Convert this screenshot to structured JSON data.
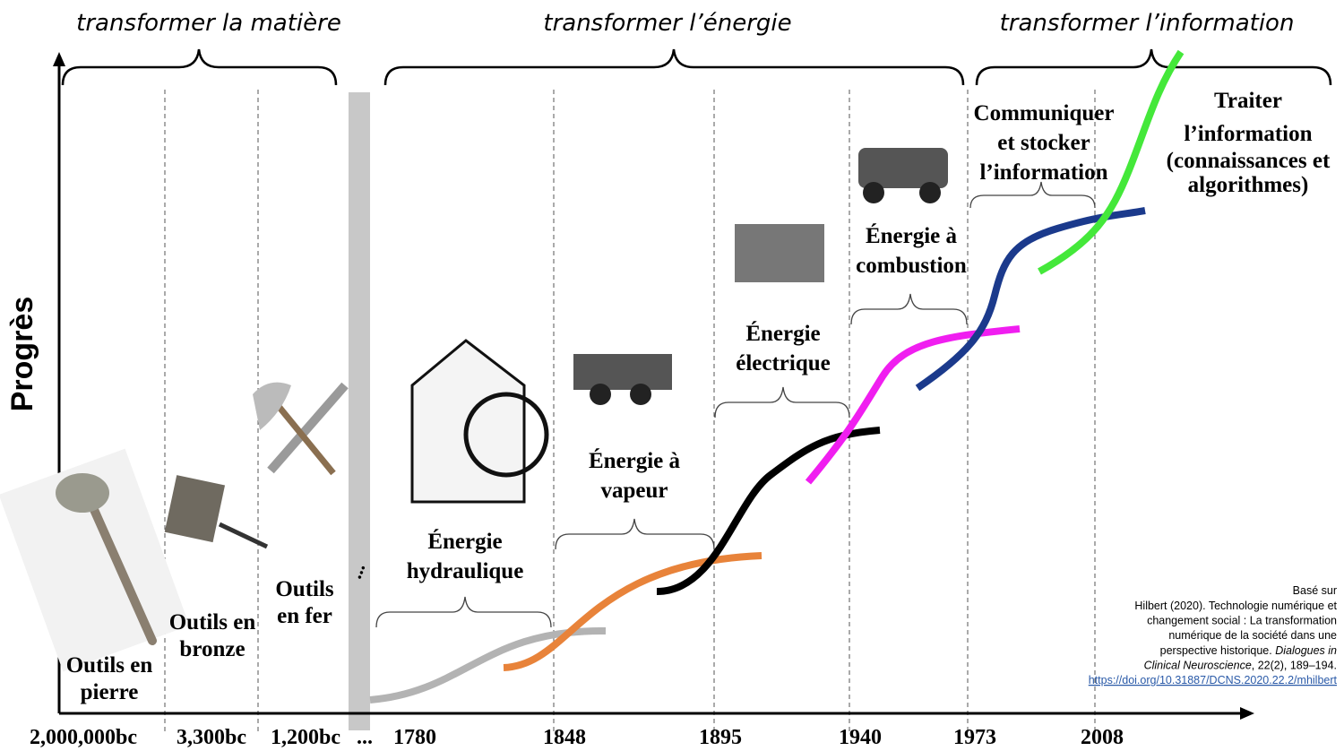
{
  "axis_label": "Progrès",
  "eras": [
    {
      "label": "transformer la matière"
    },
    {
      "label": "transformer l’énergie"
    },
    {
      "label": "transformer l’information"
    }
  ],
  "time_labels": [
    "2,000,000bc",
    "3,300bc",
    "1,200bc",
    "...",
    "1780",
    "1848",
    "1895",
    "1940",
    "1973",
    "2008"
  ],
  "stages": [
    {
      "lines": [
        "Outils en",
        "pierre"
      ]
    },
    {
      "lines": [
        "Outils en",
        "bronze"
      ]
    },
    {
      "lines": [
        "Outils",
        "en fer"
      ]
    },
    {
      "lines": [
        "Énergie",
        "hydraulique"
      ]
    },
    {
      "lines": [
        "Énergie à",
        "vapeur"
      ]
    },
    {
      "lines": [
        "Énergie",
        "électrique"
      ]
    },
    {
      "lines": [
        "Énergie à",
        "combustion"
      ]
    },
    {
      "lines": [
        "Communiquer",
        "et stocker",
        "l’information"
      ]
    },
    {
      "lines": [
        "Traiter",
        "l’information"
      ],
      "note_lines": [
        "(connaissances et",
        "algorithmes)"
      ]
    }
  ],
  "citation": {
    "intro": "Basé sur",
    "lines": [
      "Hilbert (2020). Technologie numérique et",
      "changement social : La transformation",
      "numérique de la société dans une",
      [
        "perspective historique. ",
        "Dialogues in"
      ],
      [
        "Clinical Neuroscience",
        ", 22(2), 189–194."
      ]
    ],
    "link": "https://doi.org/10.31887/DCNS.2020.22.2/mhilbert"
  }
}
